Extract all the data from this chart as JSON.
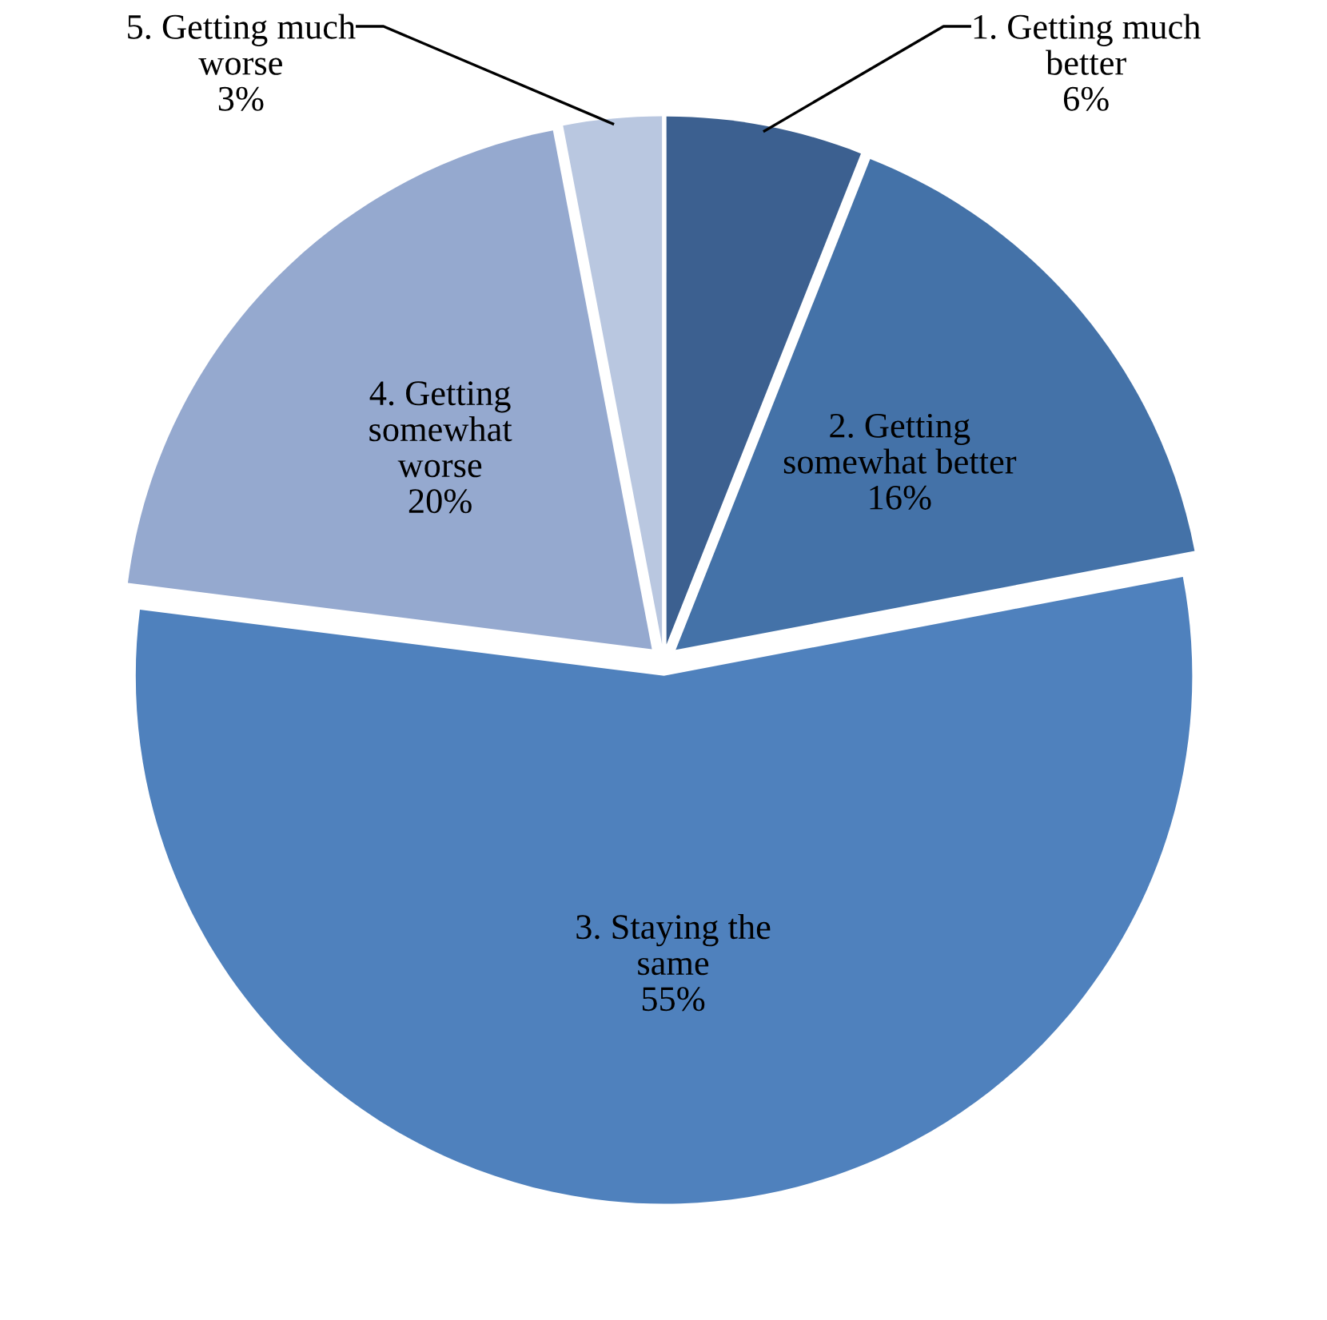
{
  "chart_data": {
    "type": "pie",
    "categories": [
      "1. Getting much\nbetter",
      "2. Getting\nsomewhat better",
      "3. Staying the\nsame",
      "4. Getting\nsomewhat\nworse",
      "5. Getting much\nworse"
    ],
    "values": [
      6,
      16,
      55,
      20,
      3
    ],
    "colors": [
      "#3c6090",
      "#4472a8",
      "#4f81bd",
      "#95a9cf",
      "#b9c7e0"
    ],
    "value_labels": [
      "6%",
      "16%",
      "55%",
      "20%",
      "3%"
    ],
    "legend": false
  }
}
